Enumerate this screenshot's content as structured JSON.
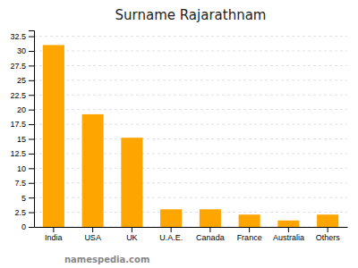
{
  "chart_data": {
    "type": "bar",
    "title": "Surname Rajarathnam",
    "categories": [
      "India",
      "USA",
      "UK",
      "U.A.E.",
      "Canada",
      "France",
      "Australia",
      "Others"
    ],
    "values": [
      31.0,
      19.2,
      15.2,
      3.0,
      3.0,
      2.1,
      1.1,
      2.1
    ],
    "color": "#FFA500",
    "ylim": [
      0,
      33.5
    ],
    "yticks": [
      0,
      2.5,
      5,
      7.5,
      10,
      12.5,
      15,
      17.5,
      20,
      22.5,
      25,
      27.5,
      30,
      32.5
    ],
    "grid": true,
    "annotations": [
      "namespedia.com"
    ]
  }
}
